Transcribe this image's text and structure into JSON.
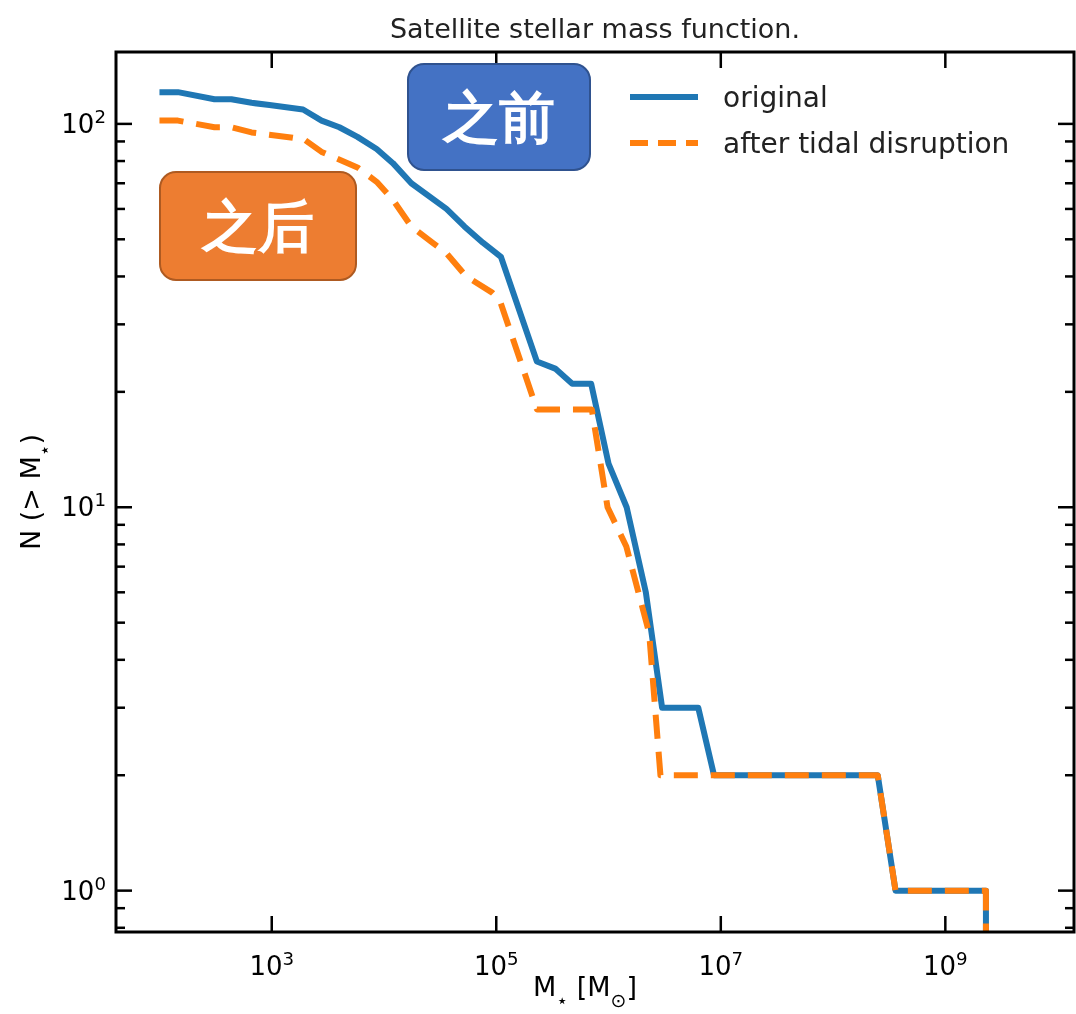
{
  "chart_data": {
    "type": "line",
    "title": "Satellite stellar mass function.",
    "xlabel": "M$_{⋆}$ [M$_{⊙}$]",
    "ylabel": "N (> M$_{⋆}$)",
    "log": "xy",
    "xlim": [
      41,
      14000000000
    ],
    "ylim": [
      0.78,
      154
    ],
    "xticks": [
      {
        "value": 1000,
        "label": "10$^{3}$"
      },
      {
        "value": 100000,
        "label": "10$^{5}$"
      },
      {
        "value": 10000000,
        "label": "10$^{7}$"
      },
      {
        "value": 1000000000,
        "label": "10$^{9}$"
      }
    ],
    "yticks": [
      {
        "value": 0.8,
        "label": null
      },
      {
        "value": 0.9,
        "label": null
      },
      {
        "value": 1,
        "label": "10$^{0}$"
      },
      {
        "value": 2,
        "label": null
      },
      {
        "value": 3,
        "label": null
      },
      {
        "value": 4,
        "label": null
      },
      {
        "value": 5,
        "label": null
      },
      {
        "value": 6,
        "label": null
      },
      {
        "value": 7,
        "label": null
      },
      {
        "value": 8,
        "label": null
      },
      {
        "value": 9,
        "label": null
      },
      {
        "value": 10,
        "label": "10$^{1}$"
      },
      {
        "value": 20,
        "label": null
      },
      {
        "value": 30,
        "label": null
      },
      {
        "value": 40,
        "label": null
      },
      {
        "value": 50,
        "label": null
      },
      {
        "value": 60,
        "label": null
      },
      {
        "value": 70,
        "label": null
      },
      {
        "value": 80,
        "label": null
      },
      {
        "value": 90,
        "label": null
      },
      {
        "value": 100,
        "label": "10$^{2}$"
      }
    ],
    "grid": false,
    "legend": "top right",
    "series": [
      {
        "name": "original",
        "color": "#1f77b4",
        "line_style": "solid",
        "x": [
          100,
          146,
          309,
          437,
          661,
          955,
          1900,
          2780,
          4000,
          5800,
          8600,
          12000,
          17500,
          36000,
          52000,
          76000,
          110000,
          230000,
          335000,
          475000,
          700000,
          1000000,
          1450000,
          2150000,
          3000000,
          6300000,
          8700000,
          250000000,
          360000000,
          2300000000,
          2300000000
        ],
        "values": [
          121,
          121,
          116,
          116,
          113.5,
          112,
          109,
          102,
          98,
          92.5,
          86,
          79,
          70,
          60,
          54,
          49,
          45,
          24,
          23,
          21,
          21,
          13,
          10,
          6,
          3,
          3,
          2,
          2,
          1,
          1,
          0.78
        ]
      },
      {
        "name": "after tidal disruption",
        "color": "#ff7f0e",
        "line_style": "dashed",
        "x": [
          100,
          146,
          309,
          437,
          661,
          1540,
          1950,
          2780,
          5800,
          8600,
          12000,
          17500,
          27000,
          36000,
          54000,
          92000,
          107000,
          230000,
          710000,
          980000,
          1440000,
          2300000,
          2900000,
          250000000,
          360000000,
          2300000000,
          2300000000
        ],
        "values": [
          102,
          102,
          98,
          98,
          95,
          92,
          91,
          84.5,
          77,
          70.6,
          63.4,
          54,
          49,
          46,
          40,
          36.3,
          34.8,
          18,
          18,
          10,
          7.9,
          4.7,
          2,
          2,
          1,
          1,
          0.78
        ]
      }
    ],
    "annotations": [
      "之前",
      "之后"
    ]
  }
}
